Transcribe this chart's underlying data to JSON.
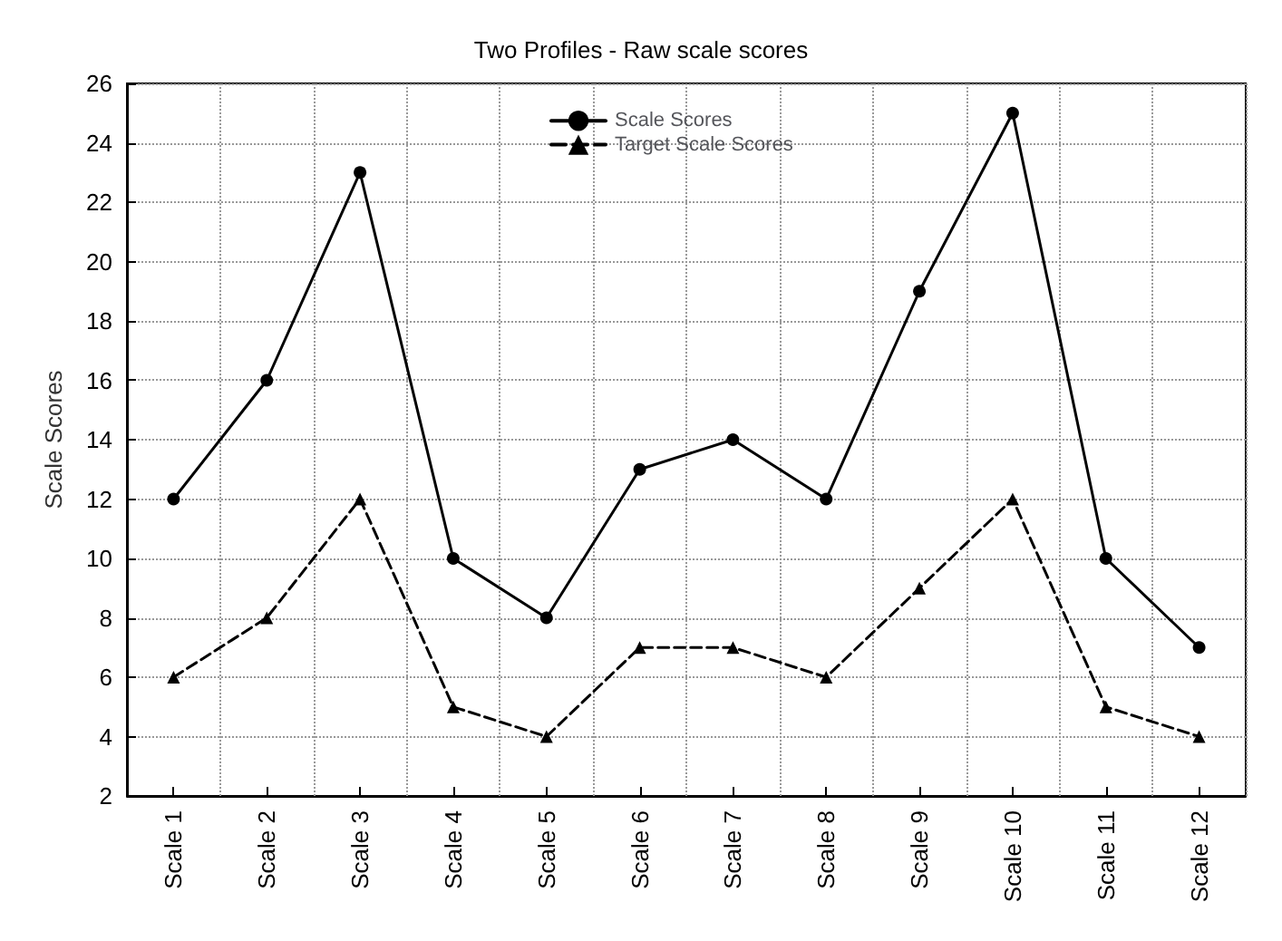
{
  "chart_data": {
    "type": "line",
    "title": "Two Profiles - Raw scale scores",
    "ylabel": "Scale Scores",
    "categories": [
      "Scale 1",
      "Scale 2",
      "Scale 3",
      "Scale 4",
      "Scale 5",
      "Scale 6",
      "Scale 7",
      "Scale 8",
      "Scale 9",
      "Scale 10",
      "Scale 11",
      "Scale 12"
    ],
    "series": [
      {
        "name": "Scale Scores",
        "color": "#000000",
        "marker": "circle",
        "line_style": "solid",
        "values": [
          12,
          16,
          23,
          10,
          8,
          13,
          14,
          12,
          19,
          25,
          10,
          7
        ]
      },
      {
        "name": "Target Scale Scores",
        "color": "#000000",
        "marker": "triangle",
        "line_style": "dashed",
        "values": [
          6,
          8,
          12,
          5,
          4,
          7,
          7,
          6,
          9,
          12,
          5,
          4
        ]
      }
    ],
    "ylim": [
      2,
      26
    ],
    "yticks": [
      2,
      4,
      6,
      8,
      10,
      12,
      14,
      16,
      18,
      20,
      22,
      24,
      26
    ],
    "grid": true,
    "legend": "top"
  }
}
